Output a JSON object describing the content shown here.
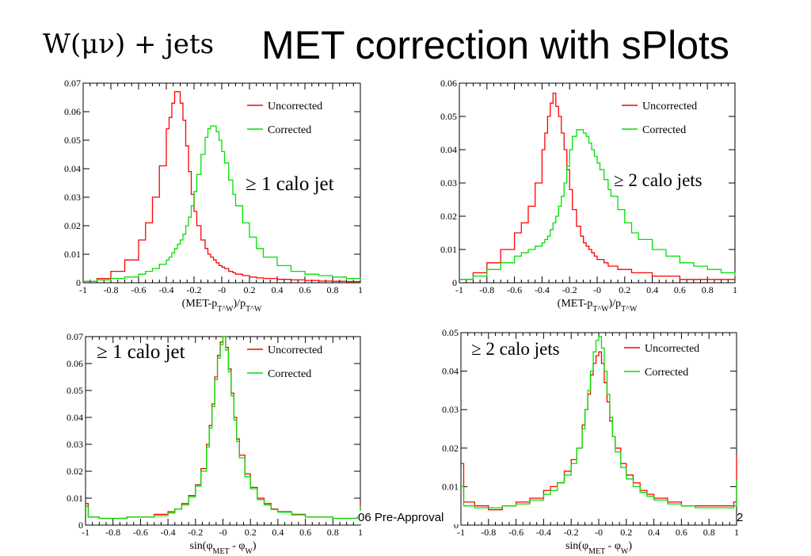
{
  "title": {
    "formula": "W(μν) + jets",
    "main": "MET correction with sPlots"
  },
  "footer": {
    "text": "06 Pre-Approval",
    "page": "2"
  },
  "colors": {
    "uncorrected": "#ff0000",
    "corrected": "#00e000"
  },
  "chart_data": [
    {
      "type": "line",
      "subtype": "step-histogram",
      "annotation": "≥ 1 calo jet",
      "xlabel": "(MET-p_T^W)/p_T^W",
      "xlim": [
        -1,
        1
      ],
      "ylim": [
        0,
        0.07
      ],
      "x_ticks": [
        "-1",
        "-0.8",
        "-0.6",
        "-0.4",
        "-0.2",
        "-0",
        "0.2",
        "0.4",
        "0.6",
        "0.8",
        "1"
      ],
      "y_ticks": [
        "0",
        "0.01",
        "0.02",
        "0.03",
        "0.04",
        "0.05",
        "0.06",
        "0.07"
      ],
      "legend": [
        "Uncorrected",
        "Corrected"
      ],
      "legend_position": "top-right",
      "x": [
        -1.0,
        -0.9,
        -0.8,
        -0.7,
        -0.6,
        -0.55,
        -0.5,
        -0.45,
        -0.4,
        -0.38,
        -0.36,
        -0.34,
        -0.32,
        -0.3,
        -0.28,
        -0.26,
        -0.24,
        -0.22,
        -0.2,
        -0.18,
        -0.15,
        -0.12,
        -0.1,
        -0.08,
        -0.06,
        -0.04,
        -0.02,
        0.0,
        0.02,
        0.05,
        0.08,
        0.1,
        0.15,
        0.2,
        0.25,
        0.3,
        0.4,
        0.5,
        0.6,
        0.7,
        0.8,
        0.9,
        1.0
      ],
      "series": [
        {
          "name": "Uncorrected",
          "values": [
            0.0005,
            0.0015,
            0.004,
            0.008,
            0.015,
            0.021,
            0.03,
            0.041,
            0.054,
            0.058,
            0.063,
            0.067,
            0.067,
            0.063,
            0.057,
            0.048,
            0.039,
            0.031,
            0.025,
            0.02,
            0.015,
            0.012,
            0.01,
            0.009,
            0.008,
            0.007,
            0.006,
            0.0055,
            0.005,
            0.004,
            0.0035,
            0.003,
            0.0025,
            0.002,
            0.0017,
            0.0015,
            0.0012,
            0.001,
            0.0008,
            0.0006,
            0.0005,
            0.0004,
            0.0003
          ]
        },
        {
          "name": "Corrected",
          "values": [
            0.0005,
            0.001,
            0.0015,
            0.002,
            0.003,
            0.004,
            0.005,
            0.0065,
            0.008,
            0.009,
            0.0105,
            0.012,
            0.0135,
            0.015,
            0.017,
            0.02,
            0.023,
            0.027,
            0.032,
            0.038,
            0.045,
            0.051,
            0.054,
            0.055,
            0.055,
            0.053,
            0.05,
            0.046,
            0.042,
            0.036,
            0.031,
            0.027,
            0.021,
            0.016,
            0.012,
            0.009,
            0.006,
            0.004,
            0.003,
            0.0025,
            0.002,
            0.0015,
            0.001
          ]
        }
      ]
    },
    {
      "type": "line",
      "subtype": "step-histogram",
      "annotation": "≥ 2 calo jets",
      "xlabel": "(MET-p_T^W)/p_T^W",
      "xlim": [
        -1,
        1
      ],
      "ylim": [
        0,
        0.06
      ],
      "x_ticks": [
        "-1",
        "-0.8",
        "-0.6",
        "-0.4",
        "-0.2",
        "-0",
        "0.2",
        "0.4",
        "0.6",
        "0.8",
        "1"
      ],
      "y_ticks": [
        "0",
        "0.01",
        "0.02",
        "0.03",
        "0.04",
        "0.05",
        "0.06"
      ],
      "legend": [
        "Uncorrected",
        "Corrected"
      ],
      "legend_position": "top-right",
      "x": [
        -1.0,
        -0.9,
        -0.8,
        -0.7,
        -0.6,
        -0.55,
        -0.5,
        -0.45,
        -0.4,
        -0.38,
        -0.36,
        -0.34,
        -0.32,
        -0.3,
        -0.28,
        -0.26,
        -0.24,
        -0.22,
        -0.2,
        -0.18,
        -0.15,
        -0.12,
        -0.1,
        -0.08,
        -0.06,
        -0.04,
        -0.02,
        0.0,
        0.02,
        0.05,
        0.08,
        0.1,
        0.15,
        0.2,
        0.25,
        0.3,
        0.4,
        0.5,
        0.6,
        0.7,
        0.8,
        0.9,
        1.0
      ],
      "series": [
        {
          "name": "Uncorrected",
          "values": [
            0.001,
            0.003,
            0.006,
            0.01,
            0.015,
            0.018,
            0.023,
            0.03,
            0.04,
            0.045,
            0.05,
            0.054,
            0.057,
            0.053,
            0.05,
            0.045,
            0.04,
            0.034,
            0.028,
            0.022,
            0.017,
            0.014,
            0.012,
            0.011,
            0.01,
            0.009,
            0.008,
            0.007,
            0.007,
            0.006,
            0.005,
            0.005,
            0.004,
            0.004,
            0.003,
            0.003,
            0.002,
            0.002,
            0.001,
            0.001,
            0.001,
            0.001,
            0.001
          ]
        },
        {
          "name": "Corrected",
          "values": [
            0.001,
            0.002,
            0.004,
            0.006,
            0.008,
            0.009,
            0.01,
            0.011,
            0.012,
            0.013,
            0.014,
            0.016,
            0.018,
            0.02,
            0.023,
            0.026,
            0.03,
            0.035,
            0.04,
            0.044,
            0.046,
            0.046,
            0.045,
            0.044,
            0.042,
            0.04,
            0.038,
            0.036,
            0.034,
            0.031,
            0.028,
            0.026,
            0.022,
            0.018,
            0.015,
            0.013,
            0.01,
            0.008,
            0.006,
            0.005,
            0.004,
            0.003,
            0.002
          ]
        }
      ]
    },
    {
      "type": "line",
      "subtype": "step-histogram",
      "annotation": "≥ 1 calo jet",
      "xlabel": "sin(φ_MET - φ_W)",
      "xlim": [
        -1,
        1
      ],
      "ylim": [
        0,
        0.07
      ],
      "x_ticks": [
        "-1",
        "-0.8",
        "-0.6",
        "-0.4",
        "-0.2",
        "-0",
        "0.2",
        "0.4",
        "0.6",
        "0.8",
        "1"
      ],
      "y_ticks": [
        "0",
        "0.01",
        "0.02",
        "0.03",
        "0.04",
        "0.05",
        "0.06",
        "0.07"
      ],
      "legend": [
        "Uncorrected",
        "Corrected"
      ],
      "legend_position": "top-right",
      "x": [
        -1.0,
        -0.98,
        -0.9,
        -0.8,
        -0.7,
        -0.6,
        -0.5,
        -0.4,
        -0.35,
        -0.3,
        -0.25,
        -0.2,
        -0.16,
        -0.12,
        -0.1,
        -0.08,
        -0.06,
        -0.04,
        -0.02,
        0.0,
        0.02,
        0.04,
        0.06,
        0.08,
        0.1,
        0.12,
        0.16,
        0.2,
        0.25,
        0.3,
        0.35,
        0.4,
        0.5,
        0.6,
        0.7,
        0.8,
        0.9,
        0.98,
        1.0
      ],
      "series": [
        {
          "name": "Uncorrected",
          "values": [
            0.008,
            0.003,
            0.0025,
            0.0025,
            0.003,
            0.003,
            0.004,
            0.005,
            0.006,
            0.008,
            0.011,
            0.015,
            0.021,
            0.03,
            0.037,
            0.045,
            0.055,
            0.063,
            0.068,
            0.07,
            0.066,
            0.058,
            0.049,
            0.04,
            0.032,
            0.026,
            0.019,
            0.014,
            0.01,
            0.008,
            0.006,
            0.005,
            0.004,
            0.003,
            0.003,
            0.0025,
            0.0025,
            0.003,
            0.008
          ]
        },
        {
          "name": "Corrected",
          "values": [
            0.007,
            0.003,
            0.0025,
            0.0025,
            0.003,
            0.003,
            0.0035,
            0.0045,
            0.006,
            0.0075,
            0.0105,
            0.0145,
            0.02,
            0.029,
            0.036,
            0.044,
            0.054,
            0.062,
            0.067,
            0.07,
            0.065,
            0.057,
            0.048,
            0.039,
            0.031,
            0.025,
            0.018,
            0.0135,
            0.0095,
            0.0075,
            0.0058,
            0.0048,
            0.0038,
            0.003,
            0.003,
            0.0025,
            0.0025,
            0.003,
            0.007
          ]
        }
      ]
    },
    {
      "type": "line",
      "subtype": "step-histogram",
      "annotation": "≥ 2 calo jets",
      "xlabel": "sin(φ_MET - φ_W)",
      "xlim": [
        -1,
        1
      ],
      "ylim": [
        0,
        0.05
      ],
      "x_ticks": [
        "-1",
        "-0.8",
        "-0.6",
        "-0.4",
        "-0.2",
        "-0",
        "0.2",
        "0.4",
        "0.6",
        "0.8",
        "1"
      ],
      "y_ticks": [
        "0",
        "0.01",
        "0.02",
        "0.03",
        "0.04",
        "0.05"
      ],
      "legend": [
        "Uncorrected",
        "Corrected"
      ],
      "legend_position": "top-right",
      "x": [
        -1.0,
        -0.98,
        -0.9,
        -0.8,
        -0.7,
        -0.6,
        -0.5,
        -0.4,
        -0.35,
        -0.3,
        -0.25,
        -0.2,
        -0.16,
        -0.12,
        -0.1,
        -0.08,
        -0.06,
        -0.04,
        -0.02,
        0.0,
        0.02,
        0.04,
        0.06,
        0.08,
        0.1,
        0.12,
        0.16,
        0.2,
        0.25,
        0.3,
        0.35,
        0.4,
        0.5,
        0.6,
        0.7,
        0.8,
        0.9,
        0.98,
        1.0
      ],
      "series": [
        {
          "name": "Uncorrected",
          "values": [
            0.016,
            0.006,
            0.005,
            0.004,
            0.005,
            0.006,
            0.007,
            0.009,
            0.01,
            0.011,
            0.014,
            0.017,
            0.02,
            0.026,
            0.03,
            0.034,
            0.039,
            0.042,
            0.044,
            0.045,
            0.042,
            0.037,
            0.032,
            0.027,
            0.023,
            0.02,
            0.016,
            0.013,
            0.011,
            0.009,
            0.008,
            0.007,
            0.006,
            0.005,
            0.005,
            0.005,
            0.005,
            0.006,
            0.018
          ]
        },
        {
          "name": "Corrected",
          "values": [
            0.01,
            0.005,
            0.0045,
            0.0045,
            0.005,
            0.0055,
            0.0065,
            0.008,
            0.009,
            0.011,
            0.013,
            0.016,
            0.02,
            0.025,
            0.03,
            0.035,
            0.04,
            0.045,
            0.048,
            0.049,
            0.046,
            0.04,
            0.034,
            0.028,
            0.023,
            0.019,
            0.015,
            0.012,
            0.01,
            0.0085,
            0.0075,
            0.0065,
            0.0055,
            0.005,
            0.0045,
            0.0045,
            0.0045,
            0.005,
            0.012
          ]
        }
      ]
    }
  ]
}
